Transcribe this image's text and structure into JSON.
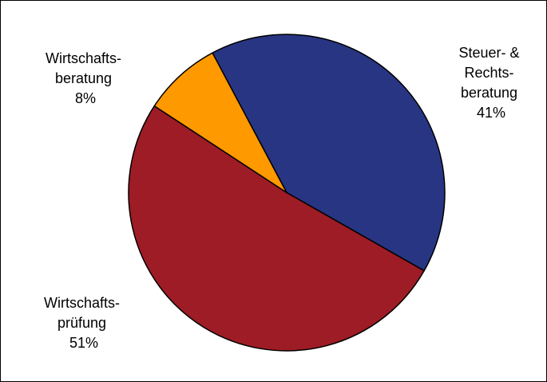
{
  "chart_data": {
    "type": "pie",
    "title": "",
    "legend": "none",
    "start_angle_deg": 242,
    "direction": "clockwise",
    "slices": [
      {
        "label": [
          "Steuer- &",
          "Rechts-",
          "beratung"
        ],
        "value": 41,
        "value_label": "41%",
        "color": "#283583"
      },
      {
        "label": [
          "Wirtschafts-",
          "prüfung"
        ],
        "value": 51,
        "value_label": "51%",
        "color": "#9e1c25"
      },
      {
        "label": [
          "Wirtschafts-",
          "beratung"
        ],
        "value": 8,
        "value_label": "8%",
        "color": "#ff9900"
      }
    ]
  },
  "colors": {
    "background": "#ffffff",
    "frame": "#000000",
    "slice_border": "#000000"
  }
}
